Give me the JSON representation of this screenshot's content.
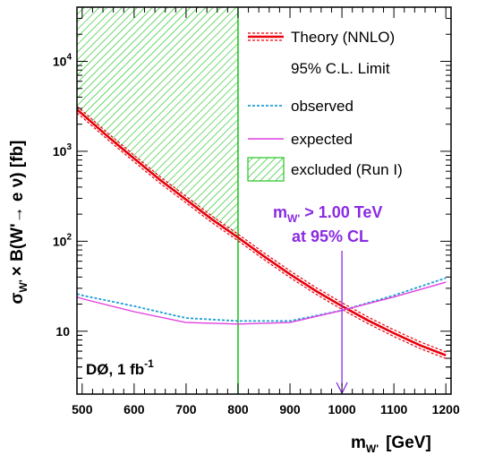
{
  "chart_data": {
    "type": "line",
    "xlabel": "m",
    "xlabel_sub": "W'",
    "xlabel_unit": "[GeV]",
    "ylabel_main": "σ",
    "ylabel_sub": "W'",
    "ylabel_rest": "× B(W'→ e ν)  [fb]",
    "xlim": [
      490,
      1210
    ],
    "ylim": [
      2,
      40000
    ],
    "yscale": "log",
    "x_ticks": [
      500,
      600,
      700,
      800,
      900,
      1000,
      1100,
      1200
    ],
    "x_tick_labels": [
      "500",
      "600",
      "700",
      "800",
      "900",
      "1000",
      "1100",
      "1200"
    ],
    "y_ticks": [
      {
        "value": 10,
        "base": "10",
        "exp": ""
      },
      {
        "value": 100,
        "base": "10",
        "exp": "2"
      },
      {
        "value": 1000,
        "base": "10",
        "exp": "3"
      },
      {
        "value": 10000,
        "base": "10",
        "exp": "4"
      }
    ],
    "series": [
      {
        "name": "Theory (NNLO)",
        "style": "theory",
        "color": "#e8000b",
        "x": [
          490,
          500,
          550,
          600,
          650,
          700,
          750,
          800,
          850,
          900,
          950,
          1000,
          1050,
          1100,
          1150,
          1200
        ],
        "y": [
          2900,
          2600,
          1450,
          830,
          480,
          290,
          175,
          110,
          68,
          43,
          28,
          19,
          13.2,
          9.5,
          7,
          5.4
        ]
      },
      {
        "name": "observed",
        "style": "observed",
        "color": "#1e9fd6",
        "x": [
          490,
          500,
          600,
          700,
          800,
          900,
          1000,
          1100,
          1200
        ],
        "y": [
          26,
          25,
          19,
          14,
          13,
          13,
          17,
          25,
          39
        ]
      },
      {
        "name": "expected",
        "style": "expected",
        "color": "#e040e0",
        "x": [
          490,
          500,
          600,
          700,
          800,
          900,
          1000,
          1100,
          1200
        ],
        "y": [
          24,
          23,
          16.5,
          12.5,
          12,
          12.5,
          17,
          24,
          35
        ]
      }
    ],
    "excluded_region": {
      "name": "excluded (Run I)",
      "x_max": 800,
      "color": "#22c522"
    },
    "limit_marker": {
      "x": 1000,
      "color": "#8a2be2"
    },
    "legend": {
      "placement": "top-right",
      "entries": [
        "Theory (NNLO)",
        "95% C.L. Limit",
        "observed",
        "expected",
        "excluded (Run I)"
      ]
    },
    "annotation": {
      "line1_pre": "m",
      "line1_sub": "W'",
      "line1_post": " > 1.00 TeV",
      "line2": "at 95% CL"
    },
    "experiment_label": {
      "text": "DØ, 1 fb",
      "exp": "-1"
    },
    "grid": false
  }
}
